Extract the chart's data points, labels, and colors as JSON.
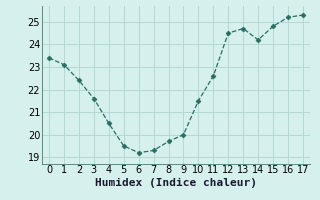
{
  "x": [
    0,
    1,
    2,
    3,
    4,
    5,
    6,
    7,
    8,
    9,
    10,
    11,
    12,
    13,
    14,
    15,
    16,
    17
  ],
  "y": [
    23.4,
    23.1,
    22.4,
    21.6,
    20.5,
    19.5,
    19.2,
    19.3,
    19.7,
    20.0,
    21.5,
    22.6,
    24.5,
    24.7,
    24.2,
    24.8,
    25.2,
    25.3
  ],
  "line_color": "#2a6e63",
  "marker": "D",
  "marker_size": 2.5,
  "bg_color": "#d6f0ee",
  "grid_color": "#b0d4d0",
  "xlabel": "Humidex (Indice chaleur)",
  "xlabel_fontsize": 8,
  "tick_fontsize": 7,
  "ylim": [
    18.7,
    25.7
  ],
  "xlim": [
    -0.5,
    17.5
  ],
  "yticks": [
    19,
    20,
    21,
    22,
    23,
    24,
    25
  ],
  "xticks": [
    0,
    1,
    2,
    3,
    4,
    5,
    6,
    7,
    8,
    9,
    10,
    11,
    12,
    13,
    14,
    15,
    16,
    17
  ]
}
